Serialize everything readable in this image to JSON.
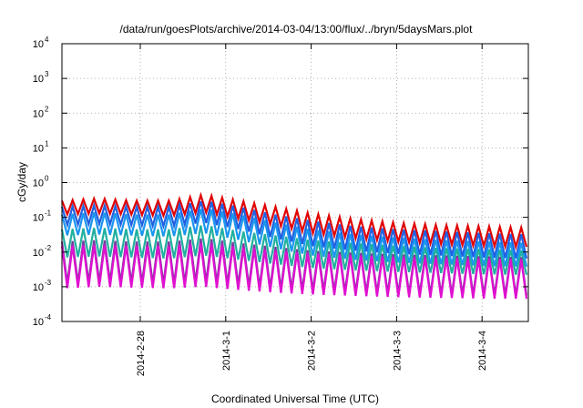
{
  "chart_data": {
    "type": "line",
    "title": "/data/run/goesPlots/archive/2014-03-04/13:00/flux/../bryn/5daysMars.plot",
    "xlabel": "Coordinated Universal Time (UTC)",
    "ylabel": "cGy/day",
    "yscale": "log",
    "ylim": [
      0.0001,
      10000
    ],
    "xlim": [
      "2014-02-27T02:00",
      "2014-03-04T13:00"
    ],
    "y_ticks": [
      {
        "base": "10",
        "exp": "-4",
        "value": 0.0001
      },
      {
        "base": "10",
        "exp": "-3",
        "value": 0.001
      },
      {
        "base": "10",
        "exp": "-2",
        "value": 0.01
      },
      {
        "base": "10",
        "exp": "-1",
        "value": 0.1
      },
      {
        "base": "10",
        "exp": "0",
        "value": 1
      },
      {
        "base": "10",
        "exp": "1",
        "value": 10
      },
      {
        "base": "10",
        "exp": "2",
        "value": 100
      },
      {
        "base": "10",
        "exp": "3",
        "value": 1000
      },
      {
        "base": "10",
        "exp": "4",
        "value": 10000
      }
    ],
    "x_ticks": [
      {
        "label": "2014-2-28",
        "t": "2014-02-28T00:00"
      },
      {
        "label": "2014-3-1",
        "t": "2014-03-01T00:00"
      },
      {
        "label": "2014-3-2",
        "t": "2014-03-02T00:00"
      },
      {
        "label": "2014-3-3",
        "t": "2014-03-03T00:00"
      },
      {
        "label": "2014-3-4",
        "t": "2014-03-04T00:00"
      }
    ],
    "grid": true,
    "legend": "none",
    "series": [
      {
        "color": "#e00000",
        "x": [
          "2014-02-27T02:00",
          "2014-02-27T12:00",
          "2014-02-27T22:00",
          "2014-02-28T08:00",
          "2014-02-28T18:00",
          "2014-03-01T04:00",
          "2014-03-01T14:00",
          "2014-03-02T00:00",
          "2014-03-02T12:00",
          "2014-03-03T00:00",
          "2014-03-03T12:00",
          "2014-03-04T00:00",
          "2014-03-04T13:00"
        ],
        "peaks": [
          0.3,
          0.35,
          0.3,
          0.3,
          0.45,
          0.3,
          0.2,
          0.13,
          0.09,
          0.07,
          0.06,
          0.055,
          0.05
        ],
        "troughs": [
          0.12,
          0.13,
          0.12,
          0.11,
          0.14,
          0.09,
          0.06,
          0.035,
          0.025,
          0.02,
          0.017,
          0.015,
          0.014
        ]
      },
      {
        "color": "#2060e0",
        "x": [
          "2014-02-27T02:00",
          "2014-02-27T12:00",
          "2014-02-27T22:00",
          "2014-02-28T08:00",
          "2014-02-28T18:00",
          "2014-03-01T04:00",
          "2014-03-01T14:00",
          "2014-03-02T00:00",
          "2014-03-02T12:00",
          "2014-03-03T00:00",
          "2014-03-03T12:00",
          "2014-03-04T00:00",
          "2014-03-04T13:00"
        ],
        "peaks": [
          0.2,
          0.22,
          0.2,
          0.2,
          0.3,
          0.2,
          0.12,
          0.08,
          0.055,
          0.045,
          0.04,
          0.035,
          0.032
        ],
        "troughs": [
          0.06,
          0.065,
          0.06,
          0.055,
          0.07,
          0.045,
          0.025,
          0.015,
          0.011,
          0.009,
          0.008,
          0.007,
          0.0065
        ]
      },
      {
        "color": "#1a96f0",
        "x": [
          "2014-02-27T02:00",
          "2014-02-27T12:00",
          "2014-02-27T22:00",
          "2014-02-28T08:00",
          "2014-02-28T18:00",
          "2014-03-01T04:00",
          "2014-03-01T14:00",
          "2014-03-02T00:00",
          "2014-03-02T12:00",
          "2014-03-03T00:00",
          "2014-03-03T12:00",
          "2014-03-04T00:00",
          "2014-03-04T13:00"
        ],
        "peaks": [
          0.12,
          0.14,
          0.12,
          0.12,
          0.18,
          0.12,
          0.07,
          0.045,
          0.032,
          0.026,
          0.022,
          0.02,
          0.018
        ],
        "troughs": [
          0.03,
          0.032,
          0.03,
          0.028,
          0.035,
          0.022,
          0.013,
          0.008,
          0.006,
          0.005,
          0.0045,
          0.004,
          0.0038
        ]
      },
      {
        "color": "#20b0a0",
        "x": [
          "2014-02-27T02:00",
          "2014-02-27T12:00",
          "2014-02-27T22:00",
          "2014-02-28T08:00",
          "2014-02-28T18:00",
          "2014-03-01T04:00",
          "2014-03-01T14:00",
          "2014-03-02T00:00",
          "2014-03-02T12:00",
          "2014-03-03T00:00",
          "2014-03-03T12:00",
          "2014-03-04T00:00",
          "2014-03-04T13:00"
        ],
        "peaks": [
          0.045,
          0.05,
          0.045,
          0.045,
          0.06,
          0.04,
          0.03,
          0.022,
          0.018,
          0.015,
          0.013,
          0.012,
          0.011
        ],
        "troughs": [
          0.007,
          0.0075,
          0.007,
          0.0065,
          0.008,
          0.006,
          0.0045,
          0.0035,
          0.003,
          0.0027,
          0.0025,
          0.0023,
          0.0022
        ]
      },
      {
        "color": "#7a3aa0",
        "x": [
          "2014-02-27T02:00",
          "2014-02-27T12:00",
          "2014-02-27T22:00",
          "2014-02-28T08:00",
          "2014-02-28T18:00",
          "2014-03-01T04:00",
          "2014-03-01T14:00",
          "2014-03-02T00:00",
          "2014-03-02T12:00",
          "2014-03-03T00:00",
          "2014-03-03T12:00",
          "2014-03-04T00:00",
          "2014-03-04T13:00"
        ],
        "peaks": [
          0.02,
          0.022,
          0.02,
          0.02,
          0.025,
          0.018,
          0.014,
          0.011,
          0.0095,
          0.0085,
          0.008,
          0.0075,
          0.007
        ],
        "troughs": [
          0.0012,
          0.0014,
          0.0013,
          0.0012,
          0.0014,
          0.0011,
          0.0009,
          0.0008,
          0.0007,
          0.00065,
          0.0006,
          0.00058,
          0.00056
        ]
      },
      {
        "color": "#e010d0",
        "x": [
          "2014-02-27T02:00",
          "2014-02-27T12:00",
          "2014-02-27T22:00",
          "2014-02-28T08:00",
          "2014-02-28T18:00",
          "2014-03-01T04:00",
          "2014-03-01T14:00",
          "2014-03-02T00:00",
          "2014-03-02T12:00",
          "2014-03-03T00:00",
          "2014-03-03T12:00",
          "2014-03-04T00:00",
          "2014-03-04T13:00"
        ],
        "peaks": [
          0.015,
          0.016,
          0.015,
          0.015,
          0.018,
          0.014,
          0.011,
          0.009,
          0.008,
          0.0072,
          0.0068,
          0.0064,
          0.006
        ],
        "troughs": [
          0.0009,
          0.001,
          0.00095,
          0.0009,
          0.001,
          0.0008,
          0.00068,
          0.0006,
          0.00055,
          0.0005,
          0.00048,
          0.00046,
          0.00045
        ]
      }
    ],
    "oscillation_period_hours": 3
  }
}
